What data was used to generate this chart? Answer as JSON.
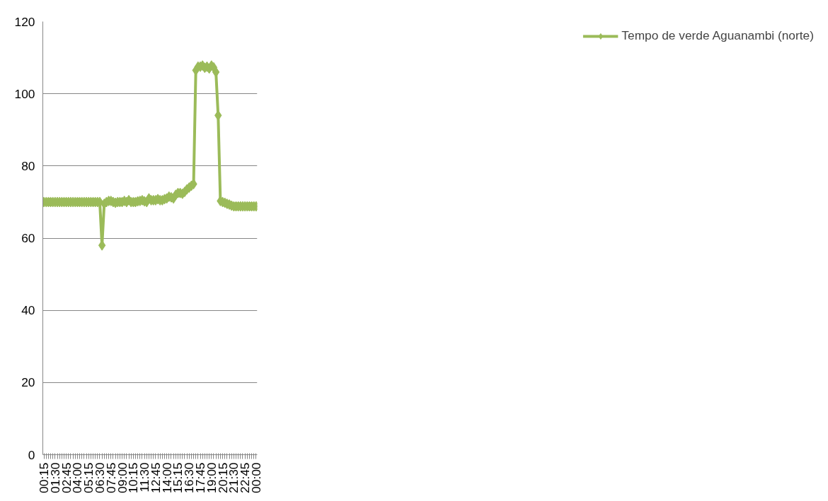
{
  "chart_data": {
    "type": "line",
    "categories": [
      "00:15",
      null,
      null,
      null,
      null,
      "01:30",
      null,
      null,
      null,
      null,
      "02:45",
      null,
      null,
      null,
      null,
      "04:00",
      null,
      null,
      null,
      null,
      "05:15",
      null,
      null,
      null,
      null,
      "06:30",
      null,
      null,
      null,
      null,
      "07:45",
      null,
      null,
      null,
      null,
      "09:00",
      null,
      null,
      null,
      null,
      "10:15",
      null,
      null,
      null,
      null,
      "11:30",
      null,
      null,
      null,
      null,
      "12:45",
      null,
      null,
      null,
      null,
      "14:00",
      null,
      null,
      null,
      null,
      "15:15",
      null,
      null,
      null,
      null,
      "16:30",
      null,
      null,
      null,
      null,
      "17:45",
      null,
      null,
      null,
      null,
      "19:00",
      null,
      null,
      null,
      null,
      "20:15",
      null,
      null,
      null,
      null,
      "21:30",
      null,
      null,
      null,
      null,
      "22:45",
      null,
      null,
      null,
      null,
      "00:00"
    ],
    "series": [
      {
        "name": "Tempo de verde Aguanambi (norte)",
        "color": "#9bbb59",
        "values": [
          70,
          70,
          70,
          70,
          70,
          70,
          70,
          70,
          70,
          70,
          70,
          70,
          70,
          70,
          70,
          70,
          70,
          70,
          70,
          70,
          70,
          70,
          70,
          70,
          70,
          70,
          58,
          69.5,
          70,
          70.3,
          70.3,
          70,
          69.8,
          70,
          70,
          70,
          70.3,
          70,
          70.5,
          70,
          70,
          70,
          70.2,
          70.3,
          70.5,
          70.2,
          70,
          71,
          70.5,
          70.5,
          70.5,
          70.8,
          70.5,
          70.5,
          70.8,
          71,
          71.5,
          71.3,
          71,
          72,
          72.5,
          72.5,
          72.3,
          72.8,
          73.5,
          74,
          74.5,
          75,
          106.5,
          107.5,
          107.5,
          107.8,
          107.2,
          107.5,
          107,
          107.8,
          107.3,
          106,
          94,
          70.3,
          70,
          69.8,
          69.5,
          69.3,
          69,
          68.8,
          68.8,
          68.8,
          68.8,
          68.8,
          68.8,
          68.8,
          68.8,
          68.8,
          68.8,
          68.8
        ]
      }
    ],
    "ylim": [
      0,
      120
    ],
    "yticks": [
      0,
      20,
      40,
      60,
      80,
      100,
      120
    ],
    "grid": "y",
    "legend": "right",
    "marker": "diamond",
    "line_style": "solid"
  }
}
